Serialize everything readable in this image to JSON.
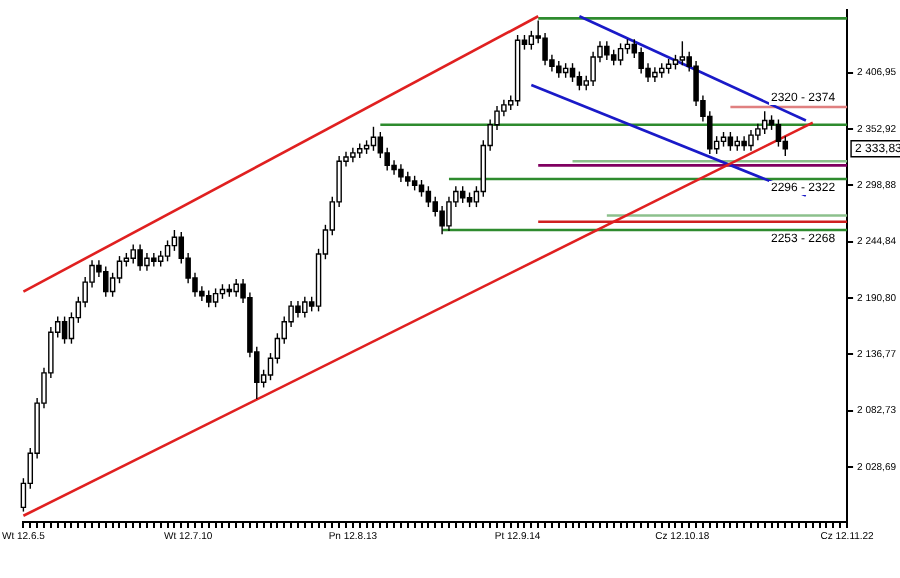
{
  "chart_data": {
    "type": "candlestick",
    "categories": [
      "Wt 12.6.5",
      null,
      null,
      null,
      null,
      null,
      null,
      null,
      null,
      null,
      null,
      null,
      null,
      null,
      null,
      null,
      null,
      null,
      null,
      null,
      null,
      null,
      null,
      null,
      "Wt 12.7.10",
      null,
      null,
      null,
      null,
      null,
      null,
      null,
      null,
      null,
      null,
      null,
      null,
      null,
      null,
      null,
      null,
      null,
      null,
      null,
      null,
      null,
      null,
      null,
      "Pn 12.8.13",
      null,
      null,
      null,
      null,
      null,
      null,
      null,
      null,
      null,
      null,
      null,
      null,
      null,
      null,
      null,
      null,
      null,
      null,
      null,
      null,
      null,
      null,
      null,
      "Pt 12.9.14",
      null,
      null,
      null,
      null,
      null,
      null,
      null,
      null,
      null,
      null,
      null,
      null,
      null,
      null,
      null,
      null,
      null,
      null,
      null,
      null,
      null,
      null,
      null,
      "Cz 12.10.18",
      null,
      null,
      null,
      null,
      null,
      null,
      null,
      null,
      null,
      null,
      null,
      null,
      null,
      null,
      null,
      null,
      null,
      null,
      null,
      null,
      null,
      null,
      null,
      "Cz 12.11.22"
    ],
    "colors": [
      "#ffffff",
      "#ffffff",
      "#ffffff",
      "#ffffff",
      "#ffffff",
      "#ffffff",
      "#000000",
      "#ffffff",
      "#ffffff",
      "#ffffff",
      "#ffffff",
      "#000000",
      "#000000",
      "#ffffff",
      "#ffffff",
      "#ffffff",
      "#ffffff",
      "#000000",
      "#ffffff",
      "#000000",
      "#ffffff",
      "#ffffff",
      "#ffffff",
      "#000000",
      "#000000",
      "#000000",
      "#000000",
      "#000000",
      "#ffffff",
      "#ffffff",
      "#000000",
      "#ffffff",
      "#000000",
      "#000000",
      "#000000",
      "#ffffff",
      "#ffffff",
      "#ffffff",
      "#ffffff",
      "#ffffff",
      "#000000",
      "#ffffff",
      "#000000",
      "#ffffff",
      "#ffffff",
      "#ffffff",
      "#ffffff",
      "#ffffff",
      "#ffffff",
      "#ffffff",
      "#ffffff",
      "#ffffff",
      "#000000",
      "#000000",
      "#000000",
      "#000000",
      "#000000",
      "#000000",
      "#000000",
      "#000000",
      "#000000",
      "#000000",
      "#ffffff",
      "#ffffff",
      "#000000",
      "#000000",
      "#ffffff",
      "#ffffff",
      "#ffffff",
      "#ffffff",
      "#ffffff",
      "#ffffff",
      "#ffffff",
      "#000000",
      "#ffffff",
      "#000000",
      "#000000",
      "#000000",
      "#000000",
      "#ffffff",
      "#000000",
      "#000000",
      "#ffffff",
      "#ffffff",
      "#ffffff",
      "#000000",
      "#000000",
      "#ffffff",
      "#ffffff",
      "#000000",
      "#000000",
      "#000000",
      "#ffffff",
      "#ffffff",
      "#ffffff",
      "#ffffff",
      "#ffffff",
      "#000000",
      "#000000",
      "#000000",
      "#000000",
      "#ffffff",
      "#ffffff",
      "#000000",
      "#ffffff",
      "#000000",
      "#ffffff",
      "#ffffff",
      "#ffffff",
      "#000000",
      "#000000",
      "#000000",
      null,
      null,
      null,
      null,
      null,
      null,
      null,
      null,
      null
    ],
    "ohlc": [
      [
        1990,
        2018,
        1986,
        2013
      ],
      [
        2013,
        2047,
        2008,
        2042
      ],
      [
        2042,
        2095,
        2037,
        2090
      ],
      [
        2090,
        2124,
        2085,
        2119
      ],
      [
        2119,
        2163,
        2114,
        2158
      ],
      [
        2158,
        2173,
        2153,
        2168
      ],
      [
        2168,
        2173,
        2147,
        2152
      ],
      [
        2152,
        2177,
        2147,
        2172
      ],
      [
        2172,
        2192,
        2167,
        2187
      ],
      [
        2187,
        2211,
        2182,
        2206
      ],
      [
        2206,
        2227,
        2201,
        2222
      ],
      [
        2222,
        2227,
        2211,
        2216
      ],
      [
        2216,
        2221,
        2192,
        2197
      ],
      [
        2197,
        2215,
        2192,
        2210
      ],
      [
        2210,
        2231,
        2205,
        2226
      ],
      [
        2226,
        2234,
        2221,
        2229
      ],
      [
        2229,
        2242,
        2224,
        2237
      ],
      [
        2237,
        2242,
        2217,
        2222
      ],
      [
        2222,
        2234,
        2217,
        2229
      ],
      [
        2229,
        2234,
        2221,
        2226
      ],
      [
        2226,
        2236,
        2221,
        2231
      ],
      [
        2231,
        2246,
        2226,
        2241
      ],
      [
        2241,
        2256,
        2236,
        2249
      ],
      [
        2249,
        2254,
        2224,
        2229
      ],
      [
        2229,
        2234,
        2205,
        2210
      ],
      [
        2210,
        2215,
        2192,
        2197
      ],
      [
        2197,
        2202,
        2188,
        2193
      ],
      [
        2193,
        2198,
        2182,
        2187
      ],
      [
        2187,
        2200,
        2182,
        2195
      ],
      [
        2195,
        2204,
        2190,
        2199
      ],
      [
        2199,
        2204,
        2192,
        2197
      ],
      [
        2197,
        2209,
        2192,
        2204
      ],
      [
        2204,
        2209,
        2186,
        2191
      ],
      [
        2191,
        2196,
        2134,
        2139
      ],
      [
        2139,
        2144,
        2094,
        2110
      ],
      [
        2110,
        2122,
        2105,
        2117
      ],
      [
        2117,
        2138,
        2112,
        2133
      ],
      [
        2133,
        2157,
        2128,
        2152
      ],
      [
        2152,
        2173,
        2147,
        2168
      ],
      [
        2168,
        2188,
        2163,
        2183
      ],
      [
        2183,
        2188,
        2172,
        2177
      ],
      [
        2177,
        2192,
        2172,
        2187
      ],
      [
        2187,
        2192,
        2178,
        2183
      ],
      [
        2183,
        2238,
        2178,
        2233
      ],
      [
        2233,
        2261,
        2228,
        2256
      ],
      [
        2256,
        2288,
        2251,
        2283
      ],
      [
        2283,
        2327,
        2278,
        2322
      ],
      [
        2322,
        2331,
        2317,
        2326
      ],
      [
        2326,
        2335,
        2321,
        2330
      ],
      [
        2330,
        2339,
        2325,
        2334
      ],
      [
        2334,
        2342,
        2329,
        2337
      ],
      [
        2337,
        2355,
        2332,
        2345
      ],
      [
        2345,
        2350,
        2325,
        2330
      ],
      [
        2330,
        2335,
        2313,
        2318
      ],
      [
        2318,
        2323,
        2309,
        2314
      ],
      [
        2314,
        2319,
        2302,
        2307
      ],
      [
        2307,
        2312,
        2298,
        2303
      ],
      [
        2303,
        2308,
        2294,
        2299
      ],
      [
        2299,
        2304,
        2288,
        2293
      ],
      [
        2293,
        2298,
        2278,
        2283
      ],
      [
        2283,
        2288,
        2269,
        2274
      ],
      [
        2274,
        2279,
        2252,
        2260
      ],
      [
        2260,
        2288,
        2255,
        2283
      ],
      [
        2283,
        2298,
        2278,
        2293
      ],
      [
        2293,
        2298,
        2282,
        2287
      ],
      [
        2287,
        2292,
        2278,
        2283
      ],
      [
        2283,
        2298,
        2278,
        2293
      ],
      [
        2293,
        2342,
        2288,
        2337
      ],
      [
        2337,
        2362,
        2332,
        2357
      ],
      [
        2357,
        2375,
        2352,
        2370
      ],
      [
        2370,
        2381,
        2365,
        2376
      ],
      [
        2376,
        2385,
        2371,
        2380
      ],
      [
        2380,
        2443,
        2375,
        2438
      ],
      [
        2438,
        2443,
        2429,
        2434
      ],
      [
        2434,
        2447,
        2429,
        2442
      ],
      [
        2442,
        2457,
        2435,
        2440
      ],
      [
        2440,
        2445,
        2414,
        2419
      ],
      [
        2419,
        2424,
        2408,
        2413
      ],
      [
        2413,
        2418,
        2402,
        2407
      ],
      [
        2407,
        2416,
        2402,
        2411
      ],
      [
        2411,
        2416,
        2398,
        2403
      ],
      [
        2403,
        2408,
        2390,
        2395
      ],
      [
        2395,
        2404,
        2390,
        2399
      ],
      [
        2399,
        2427,
        2394,
        2422
      ],
      [
        2422,
        2437,
        2417,
        2432
      ],
      [
        2432,
        2437,
        2419,
        2424
      ],
      [
        2424,
        2429,
        2414,
        2419
      ],
      [
        2419,
        2435,
        2414,
        2430
      ],
      [
        2430,
        2439,
        2425,
        2434
      ],
      [
        2434,
        2439,
        2421,
        2426
      ],
      [
        2426,
        2431,
        2406,
        2411
      ],
      [
        2411,
        2416,
        2398,
        2403
      ],
      [
        2403,
        2412,
        2398,
        2407
      ],
      [
        2407,
        2416,
        2402,
        2411
      ],
      [
        2411,
        2420,
        2406,
        2415
      ],
      [
        2415,
        2424,
        2410,
        2419
      ],
      [
        2419,
        2437,
        2414,
        2422
      ],
      [
        2422,
        2427,
        2408,
        2413
      ],
      [
        2413,
        2418,
        2375,
        2380
      ],
      [
        2380,
        2385,
        2360,
        2365
      ],
      [
        2365,
        2370,
        2329,
        2334
      ],
      [
        2334,
        2346,
        2329,
        2341
      ],
      [
        2341,
        2350,
        2336,
        2345
      ],
      [
        2345,
        2350,
        2332,
        2337
      ],
      [
        2337,
        2346,
        2332,
        2341
      ],
      [
        2341,
        2346,
        2332,
        2337
      ],
      [
        2337,
        2352,
        2332,
        2347
      ],
      [
        2347,
        2358,
        2342,
        2353
      ],
      [
        2353,
        2370,
        2348,
        2361
      ],
      [
        2361,
        2366,
        2352,
        2357
      ],
      [
        2357,
        2362,
        2336,
        2341
      ],
      [
        2341,
        2346,
        2327,
        2334
      ],
      null,
      null,
      null,
      null,
      null,
      null,
      null,
      null,
      null
    ],
    "series": [
      {
        "type": "line",
        "color": "#e02020",
        "values": [
          2197,
          null,
          null,
          null,
          null,
          null,
          null,
          null,
          null,
          null,
          null,
          null,
          null,
          null,
          null,
          null,
          null,
          null,
          null,
          null,
          null,
          null,
          null,
          null,
          null,
          null,
          null,
          null,
          null,
          null,
          null,
          null,
          null,
          null,
          null,
          null,
          null,
          null,
          null,
          null,
          null,
          null,
          null,
          null,
          null,
          null,
          null,
          null,
          null,
          null,
          null,
          null,
          null,
          null,
          null,
          null,
          null,
          null,
          null,
          null,
          null,
          null,
          null,
          null,
          null,
          null,
          null,
          null,
          null,
          null,
          null,
          null,
          null,
          null,
          null,
          2461,
          null,
          null,
          null,
          null,
          null,
          null,
          null,
          null,
          null,
          null,
          null,
          null,
          null,
          null,
          null,
          null,
          null,
          null,
          null,
          null,
          null,
          null,
          null,
          null,
          null,
          null,
          null,
          null,
          null,
          null,
          null,
          null,
          null,
          null,
          null,
          null,
          null,
          null,
          null,
          null,
          null,
          null,
          null,
          null,
          null
        ]
      },
      {
        "type": "line",
        "color": "#e02020",
        "values": [
          1982,
          null,
          null,
          null,
          null,
          null,
          null,
          null,
          null,
          null,
          null,
          null,
          null,
          null,
          null,
          null,
          null,
          null,
          null,
          null,
          null,
          null,
          null,
          null,
          null,
          null,
          null,
          null,
          null,
          null,
          null,
          null,
          null,
          null,
          null,
          null,
          null,
          null,
          null,
          null,
          null,
          null,
          null,
          null,
          null,
          null,
          null,
          null,
          null,
          null,
          null,
          null,
          null,
          null,
          null,
          null,
          null,
          null,
          null,
          null,
          null,
          null,
          null,
          null,
          null,
          null,
          null,
          null,
          null,
          null,
          null,
          null,
          null,
          null,
          null,
          null,
          null,
          null,
          null,
          null,
          null,
          null,
          null,
          null,
          null,
          null,
          null,
          null,
          null,
          null,
          null,
          null,
          null,
          null,
          null,
          null,
          null,
          null,
          null,
          null,
          null,
          null,
          null,
          null,
          null,
          null,
          null,
          null,
          null,
          null,
          null,
          null,
          null,
          null,
          null,
          2359,
          null,
          null,
          null,
          null,
          null
        ]
      },
      {
        "type": "line",
        "color": "#1a1ac8",
        "values": [
          null,
          null,
          null,
          null,
          null,
          null,
          null,
          null,
          null,
          null,
          null,
          null,
          null,
          null,
          null,
          null,
          null,
          null,
          null,
          null,
          null,
          null,
          null,
          null,
          null,
          null,
          null,
          null,
          null,
          null,
          null,
          null,
          null,
          null,
          null,
          null,
          null,
          null,
          null,
          null,
          null,
          null,
          null,
          null,
          null,
          null,
          null,
          null,
          null,
          null,
          null,
          null,
          null,
          null,
          null,
          null,
          null,
          null,
          null,
          null,
          null,
          null,
          null,
          null,
          null,
          null,
          null,
          null,
          null,
          null,
          null,
          null,
          null,
          null,
          null,
          null,
          null,
          null,
          null,
          null,
          null,
          2461,
          null,
          null,
          null,
          null,
          null,
          null,
          null,
          null,
          null,
          null,
          null,
          null,
          null,
          null,
          null,
          null,
          null,
          null,
          null,
          null,
          null,
          null,
          null,
          null,
          null,
          null,
          null,
          null,
          null,
          null,
          null,
          null,
          2361,
          null,
          null,
          null,
          null,
          null,
          null
        ]
      },
      {
        "type": "line",
        "color": "#1a1ac8",
        "values": [
          null,
          null,
          null,
          null,
          null,
          null,
          null,
          null,
          null,
          null,
          null,
          null,
          null,
          null,
          null,
          null,
          null,
          null,
          null,
          null,
          null,
          null,
          null,
          null,
          null,
          null,
          null,
          null,
          null,
          null,
          null,
          null,
          null,
          null,
          null,
          null,
          null,
          null,
          null,
          null,
          null,
          null,
          null,
          null,
          null,
          null,
          null,
          null,
          null,
          null,
          null,
          null,
          null,
          null,
          null,
          null,
          null,
          null,
          null,
          null,
          null,
          null,
          null,
          null,
          null,
          null,
          null,
          null,
          null,
          null,
          null,
          null,
          null,
          null,
          2395,
          null,
          null,
          null,
          null,
          null,
          null,
          null,
          null,
          null,
          null,
          null,
          null,
          null,
          null,
          null,
          null,
          null,
          null,
          null,
          null,
          null,
          null,
          null,
          null,
          null,
          null,
          null,
          null,
          null,
          null,
          null,
          null,
          null,
          null,
          null,
          null,
          null,
          null,
          null,
          2289,
          null,
          null,
          null,
          null,
          null,
          null
        ]
      },
      {
        "type": "line",
        "color": "#2e8b2e",
        "values": [
          null,
          null,
          null,
          null,
          null,
          null,
          null,
          null,
          null,
          null,
          null,
          null,
          null,
          null,
          null,
          null,
          null,
          null,
          null,
          null,
          null,
          null,
          null,
          null,
          null,
          null,
          null,
          null,
          null,
          null,
          null,
          null,
          null,
          null,
          null,
          null,
          null,
          null,
          null,
          null,
          null,
          null,
          null,
          null,
          null,
          null,
          null,
          null,
          null,
          null,
          null,
          null,
          null,
          null,
          null,
          null,
          null,
          null,
          null,
          null,
          null,
          null,
          null,
          null,
          null,
          null,
          null,
          null,
          null,
          null,
          null,
          null,
          null,
          null,
          null,
          2459,
          null,
          null,
          null,
          null,
          null,
          null,
          null,
          null,
          null,
          null,
          null,
          null,
          null,
          null,
          null,
          null,
          null,
          null,
          null,
          null,
          null,
          null,
          null,
          null,
          null,
          null,
          null,
          null,
          null,
          null,
          null,
          null,
          null,
          null,
          null,
          null,
          null,
          null,
          null,
          null,
          null,
          null,
          null,
          null,
          2459
        ]
      },
      {
        "type": "line",
        "color": "#2e8b2e",
        "values": [
          null,
          null,
          null,
          null,
          null,
          null,
          null,
          null,
          null,
          null,
          null,
          null,
          null,
          null,
          null,
          null,
          null,
          null,
          null,
          null,
          null,
          null,
          null,
          null,
          null,
          null,
          null,
          null,
          null,
          null,
          null,
          null,
          null,
          null,
          null,
          null,
          null,
          null,
          null,
          null,
          null,
          null,
          null,
          null,
          null,
          null,
          null,
          null,
          null,
          null,
          null,
          null,
          2357,
          null,
          null,
          null,
          null,
          null,
          null,
          null,
          null,
          null,
          null,
          null,
          null,
          null,
          null,
          null,
          null,
          null,
          null,
          null,
          null,
          null,
          null,
          null,
          null,
          null,
          null,
          null,
          null,
          null,
          null,
          null,
          null,
          null,
          null,
          null,
          null,
          null,
          null,
          null,
          null,
          null,
          null,
          null,
          null,
          null,
          null,
          null,
          null,
          null,
          null,
          null,
          null,
          null,
          null,
          null,
          null,
          null,
          null,
          null,
          null,
          null,
          null,
          null,
          null,
          null,
          null,
          null,
          2357
        ]
      },
      {
        "type": "line",
        "color": "#2e8b2e",
        "values": [
          null,
          null,
          null,
          null,
          null,
          null,
          null,
          null,
          null,
          null,
          null,
          null,
          null,
          null,
          null,
          null,
          null,
          null,
          null,
          null,
          null,
          null,
          null,
          null,
          null,
          null,
          null,
          null,
          null,
          null,
          null,
          null,
          null,
          null,
          null,
          null,
          null,
          null,
          null,
          null,
          null,
          null,
          null,
          null,
          null,
          null,
          null,
          null,
          null,
          null,
          null,
          null,
          null,
          null,
          null,
          null,
          null,
          null,
          null,
          null,
          null,
          null,
          2305,
          null,
          null,
          null,
          null,
          null,
          null,
          null,
          null,
          null,
          null,
          null,
          null,
          null,
          null,
          null,
          null,
          null,
          null,
          null,
          null,
          null,
          null,
          null,
          null,
          null,
          null,
          null,
          null,
          null,
          null,
          null,
          null,
          null,
          null,
          null,
          null,
          null,
          null,
          null,
          null,
          null,
          null,
          null,
          null,
          null,
          null,
          null,
          null,
          null,
          null,
          null,
          null,
          null,
          null,
          null,
          null,
          null,
          2305
        ]
      },
      {
        "type": "line",
        "color": "#2e8b2e",
        "values": [
          null,
          null,
          null,
          null,
          null,
          null,
          null,
          null,
          null,
          null,
          null,
          null,
          null,
          null,
          null,
          null,
          null,
          null,
          null,
          null,
          null,
          null,
          null,
          null,
          null,
          null,
          null,
          null,
          null,
          null,
          null,
          null,
          null,
          null,
          null,
          null,
          null,
          null,
          null,
          null,
          null,
          null,
          null,
          null,
          null,
          null,
          null,
          null,
          null,
          null,
          null,
          null,
          null,
          null,
          null,
          null,
          null,
          null,
          null,
          null,
          null,
          2256,
          null,
          null,
          null,
          null,
          null,
          null,
          null,
          null,
          null,
          null,
          null,
          null,
          null,
          null,
          null,
          null,
          null,
          null,
          null,
          null,
          null,
          null,
          null,
          null,
          null,
          null,
          null,
          null,
          null,
          null,
          null,
          null,
          null,
          null,
          null,
          null,
          null,
          null,
          null,
          null,
          null,
          null,
          null,
          null,
          null,
          null,
          null,
          null,
          null,
          null,
          null,
          null,
          null,
          null,
          null,
          null,
          null,
          null,
          2256
        ]
      },
      {
        "type": "line",
        "color": "#8cc08c",
        "values": [
          null,
          null,
          null,
          null,
          null,
          null,
          null,
          null,
          null,
          null,
          null,
          null,
          null,
          null,
          null,
          null,
          null,
          null,
          null,
          null,
          null,
          null,
          null,
          null,
          null,
          null,
          null,
          null,
          null,
          null,
          null,
          null,
          null,
          null,
          null,
          null,
          null,
          null,
          null,
          null,
          null,
          null,
          null,
          null,
          null,
          null,
          null,
          null,
          null,
          null,
          null,
          null,
          null,
          null,
          null,
          null,
          null,
          null,
          null,
          null,
          null,
          null,
          null,
          null,
          null,
          null,
          null,
          null,
          null,
          null,
          null,
          null,
          null,
          null,
          null,
          null,
          null,
          null,
          null,
          null,
          2322,
          null,
          null,
          null,
          null,
          null,
          null,
          null,
          null,
          null,
          null,
          null,
          null,
          null,
          null,
          null,
          null,
          null,
          null,
          null,
          null,
          null,
          null,
          null,
          null,
          null,
          null,
          null,
          null,
          null,
          null,
          null,
          null,
          null,
          null,
          null,
          null,
          null,
          null,
          null,
          2322
        ]
      },
      {
        "type": "line",
        "color": "#800060",
        "values": [
          null,
          null,
          null,
          null,
          null,
          null,
          null,
          null,
          null,
          null,
          null,
          null,
          null,
          null,
          null,
          null,
          null,
          null,
          null,
          null,
          null,
          null,
          null,
          null,
          null,
          null,
          null,
          null,
          null,
          null,
          null,
          null,
          null,
          null,
          null,
          null,
          null,
          null,
          null,
          null,
          null,
          null,
          null,
          null,
          null,
          null,
          null,
          null,
          null,
          null,
          null,
          null,
          null,
          null,
          null,
          null,
          null,
          null,
          null,
          null,
          null,
          null,
          null,
          null,
          null,
          null,
          null,
          null,
          null,
          null,
          null,
          null,
          null,
          null,
          null,
          2318,
          null,
          null,
          null,
          null,
          null,
          null,
          null,
          null,
          null,
          null,
          null,
          null,
          null,
          null,
          null,
          null,
          null,
          null,
          null,
          null,
          null,
          null,
          null,
          null,
          null,
          null,
          null,
          null,
          null,
          null,
          null,
          null,
          null,
          null,
          null,
          null,
          null,
          null,
          null,
          null,
          null,
          null,
          null,
          null,
          2318
        ]
      },
      {
        "type": "line",
        "color": "#e08080",
        "values": [
          null,
          null,
          null,
          null,
          null,
          null,
          null,
          null,
          null,
          null,
          null,
          null,
          null,
          null,
          null,
          null,
          null,
          null,
          null,
          null,
          null,
          null,
          null,
          null,
          null,
          null,
          null,
          null,
          null,
          null,
          null,
          null,
          null,
          null,
          null,
          null,
          null,
          null,
          null,
          null,
          null,
          null,
          null,
          null,
          null,
          null,
          null,
          null,
          null,
          null,
          null,
          null,
          null,
          null,
          null,
          null,
          null,
          null,
          null,
          null,
          null,
          null,
          null,
          null,
          null,
          null,
          null,
          null,
          null,
          null,
          null,
          null,
          null,
          null,
          null,
          null,
          null,
          null,
          null,
          null,
          null,
          null,
          null,
          null,
          null,
          null,
          null,
          null,
          null,
          null,
          null,
          null,
          null,
          null,
          null,
          null,
          null,
          null,
          null,
          null,
          null,
          null,
          null,
          2374,
          null,
          null,
          null,
          null,
          null,
          null,
          null,
          null,
          null,
          null,
          null,
          null,
          null,
          null,
          null,
          null,
          2374
        ]
      },
      {
        "type": "line",
        "color": "#d02020",
        "values": [
          null,
          null,
          null,
          null,
          null,
          null,
          null,
          null,
          null,
          null,
          null,
          null,
          null,
          null,
          null,
          null,
          null,
          null,
          null,
          null,
          null,
          null,
          null,
          null,
          null,
          null,
          null,
          null,
          null,
          null,
          null,
          null,
          null,
          null,
          null,
          null,
          null,
          null,
          null,
          null,
          null,
          null,
          null,
          null,
          null,
          null,
          null,
          null,
          null,
          null,
          null,
          null,
          null,
          null,
          null,
          null,
          null,
          null,
          null,
          null,
          null,
          null,
          null,
          null,
          null,
          null,
          null,
          null,
          null,
          null,
          null,
          null,
          null,
          null,
          null,
          2264,
          null,
          null,
          null,
          null,
          null,
          null,
          null,
          null,
          null,
          null,
          null,
          null,
          null,
          null,
          null,
          null,
          null,
          null,
          null,
          null,
          null,
          null,
          null,
          null,
          null,
          null,
          null,
          null,
          null,
          null,
          null,
          null,
          null,
          null,
          null,
          null,
          null,
          null,
          null,
          null,
          null,
          null,
          null,
          null,
          2264
        ]
      },
      {
        "type": "line",
        "color": "#8cc08c",
        "values": [
          null,
          null,
          null,
          null,
          null,
          null,
          null,
          null,
          null,
          null,
          null,
          null,
          null,
          null,
          null,
          null,
          null,
          null,
          null,
          null,
          null,
          null,
          null,
          null,
          null,
          null,
          null,
          null,
          null,
          null,
          null,
          null,
          null,
          null,
          null,
          null,
          null,
          null,
          null,
          null,
          null,
          null,
          null,
          null,
          null,
          null,
          null,
          null,
          null,
          null,
          null,
          null,
          null,
          null,
          null,
          null,
          null,
          null,
          null,
          null,
          null,
          null,
          null,
          null,
          null,
          null,
          null,
          null,
          null,
          null,
          null,
          null,
          null,
          null,
          null,
          null,
          null,
          null,
          null,
          null,
          null,
          null,
          null,
          null,
          null,
          2270,
          null,
          null,
          null,
          null,
          null,
          null,
          null,
          null,
          null,
          null,
          null,
          null,
          null,
          null,
          null,
          null,
          null,
          null,
          null,
          null,
          null,
          null,
          null,
          null,
          null,
          null,
          null,
          null,
          null,
          null,
          null,
          null,
          null,
          null,
          2270
        ]
      }
    ],
    "ylim": [
      1976,
      2467
    ],
    "yticks": [
      {
        "value": 2028.69,
        "label": "2 028,69"
      },
      {
        "value": 2082.73,
        "label": "2 082,73"
      },
      {
        "value": 2136.77,
        "label": "2 136,77"
      },
      {
        "value": 2190.8,
        "label": "2 190,80"
      },
      {
        "value": 2244.84,
        "label": "2 244,84"
      },
      {
        "value": 2298.88,
        "label": "2 298,88"
      },
      {
        "value": 2352.92,
        "label": "2 352,92"
      },
      {
        "value": 2406.95,
        "label": "2 406,95"
      }
    ],
    "annotations": [
      {
        "text": "2320 - 2374",
        "y": 2374
      },
      {
        "text": "2296 - 2322",
        "y": 2305
      },
      {
        "text": "2253 - 2268",
        "y": 2256
      },
      "2 333,83"
    ],
    "grid": false,
    "legend": false
  }
}
